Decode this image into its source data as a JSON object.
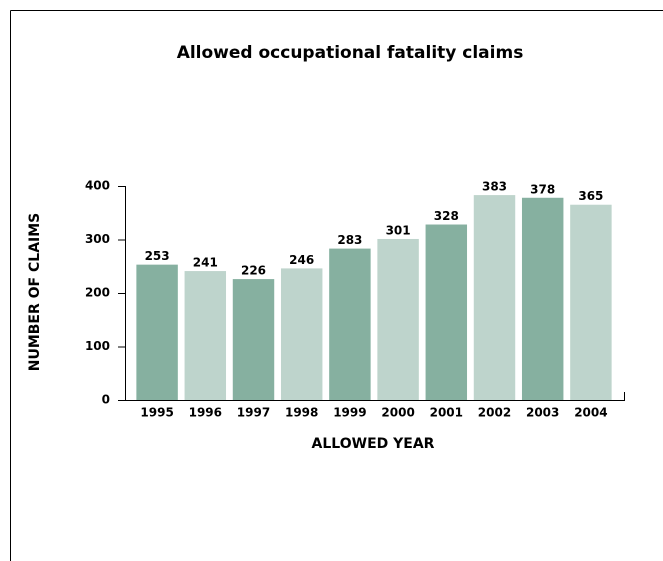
{
  "chart_data": {
    "type": "bar",
    "title": "Allowed occupational fatality claims",
    "x_label": "ALLOWED YEAR",
    "y_label": "NUMBER OF CLAIMS",
    "categories": [
      "1995",
      "1996",
      "1997",
      "1998",
      "1999",
      "2000",
      "2001",
      "2002",
      "2003",
      "2004"
    ],
    "values": [
      253,
      241,
      226,
      246,
      283,
      301,
      328,
      383,
      378,
      365
    ],
    "colors": [
      "#86b0a0",
      "#bed4cc",
      "#86b0a0",
      "#bed4cc",
      "#86b0a0",
      "#bed4cc",
      "#86b0a0",
      "#bed4cc",
      "#86b0a0",
      "#bed4cc"
    ],
    "ylim": [
      0,
      400
    ],
    "yticks": [
      0,
      100,
      200,
      300,
      400
    ]
  }
}
